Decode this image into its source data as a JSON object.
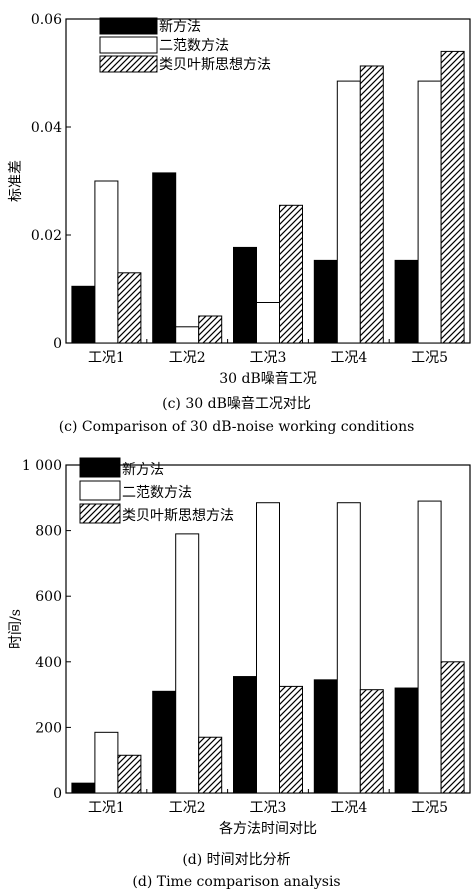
{
  "chart_data": [
    {
      "type": "bar",
      "ylabel": "标准差",
      "xlabel": "30 dB噪音工况",
      "captions": [
        "(c) 30 dB噪音工况对比",
        "(c) Comparison of 30 dB-noise working conditions"
      ],
      "categories": [
        "工况1",
        "工况2",
        "工况3",
        "工况4",
        "工况5"
      ],
      "ylim": [
        0,
        0.06
      ],
      "yticks": [
        0,
        0.02,
        0.04,
        0.06
      ],
      "ytick_labels": [
        "0",
        "0.02",
        "0.04",
        "0.06"
      ],
      "legend_position": "top-left",
      "series": [
        {
          "name": "新方法",
          "fill": "solid",
          "color": "#000000",
          "values": [
            0.0105,
            0.0315,
            0.0177,
            0.0153,
            0.0153
          ]
        },
        {
          "name": "二范数方法",
          "fill": "empty",
          "color": "#ffffff",
          "values": [
            0.03,
            0.003,
            0.0075,
            0.0485,
            0.0485
          ]
        },
        {
          "name": "类贝叶斯思想方法",
          "fill": "hatch",
          "color": "#000000",
          "values": [
            0.013,
            0.005,
            0.0255,
            0.0513,
            0.054
          ]
        }
      ]
    },
    {
      "type": "bar",
      "ylabel": "时间/s",
      "xlabel": "各方法时间对比",
      "captions": [
        "(d) 时间对比分析",
        "(d) Time comparison analysis"
      ],
      "categories": [
        "工况1",
        "工况2",
        "工况3",
        "工况4",
        "工况5"
      ],
      "ylim": [
        0,
        1000
      ],
      "yticks": [
        0,
        200,
        400,
        600,
        800,
        1000
      ],
      "ytick_labels": [
        "0",
        "200",
        "400",
        "600",
        "800",
        "1 000"
      ],
      "legend_position": "top-left",
      "series": [
        {
          "name": "新方法",
          "fill": "solid",
          "color": "#000000",
          "values": [
            30,
            310,
            355,
            345,
            320
          ]
        },
        {
          "name": "二范数方法",
          "fill": "empty",
          "color": "#ffffff",
          "values": [
            185,
            790,
            885,
            885,
            890
          ]
        },
        {
          "name": "类贝叶斯思想方法",
          "fill": "hatch",
          "color": "#000000",
          "values": [
            115,
            170,
            325,
            315,
            400
          ]
        }
      ]
    }
  ]
}
